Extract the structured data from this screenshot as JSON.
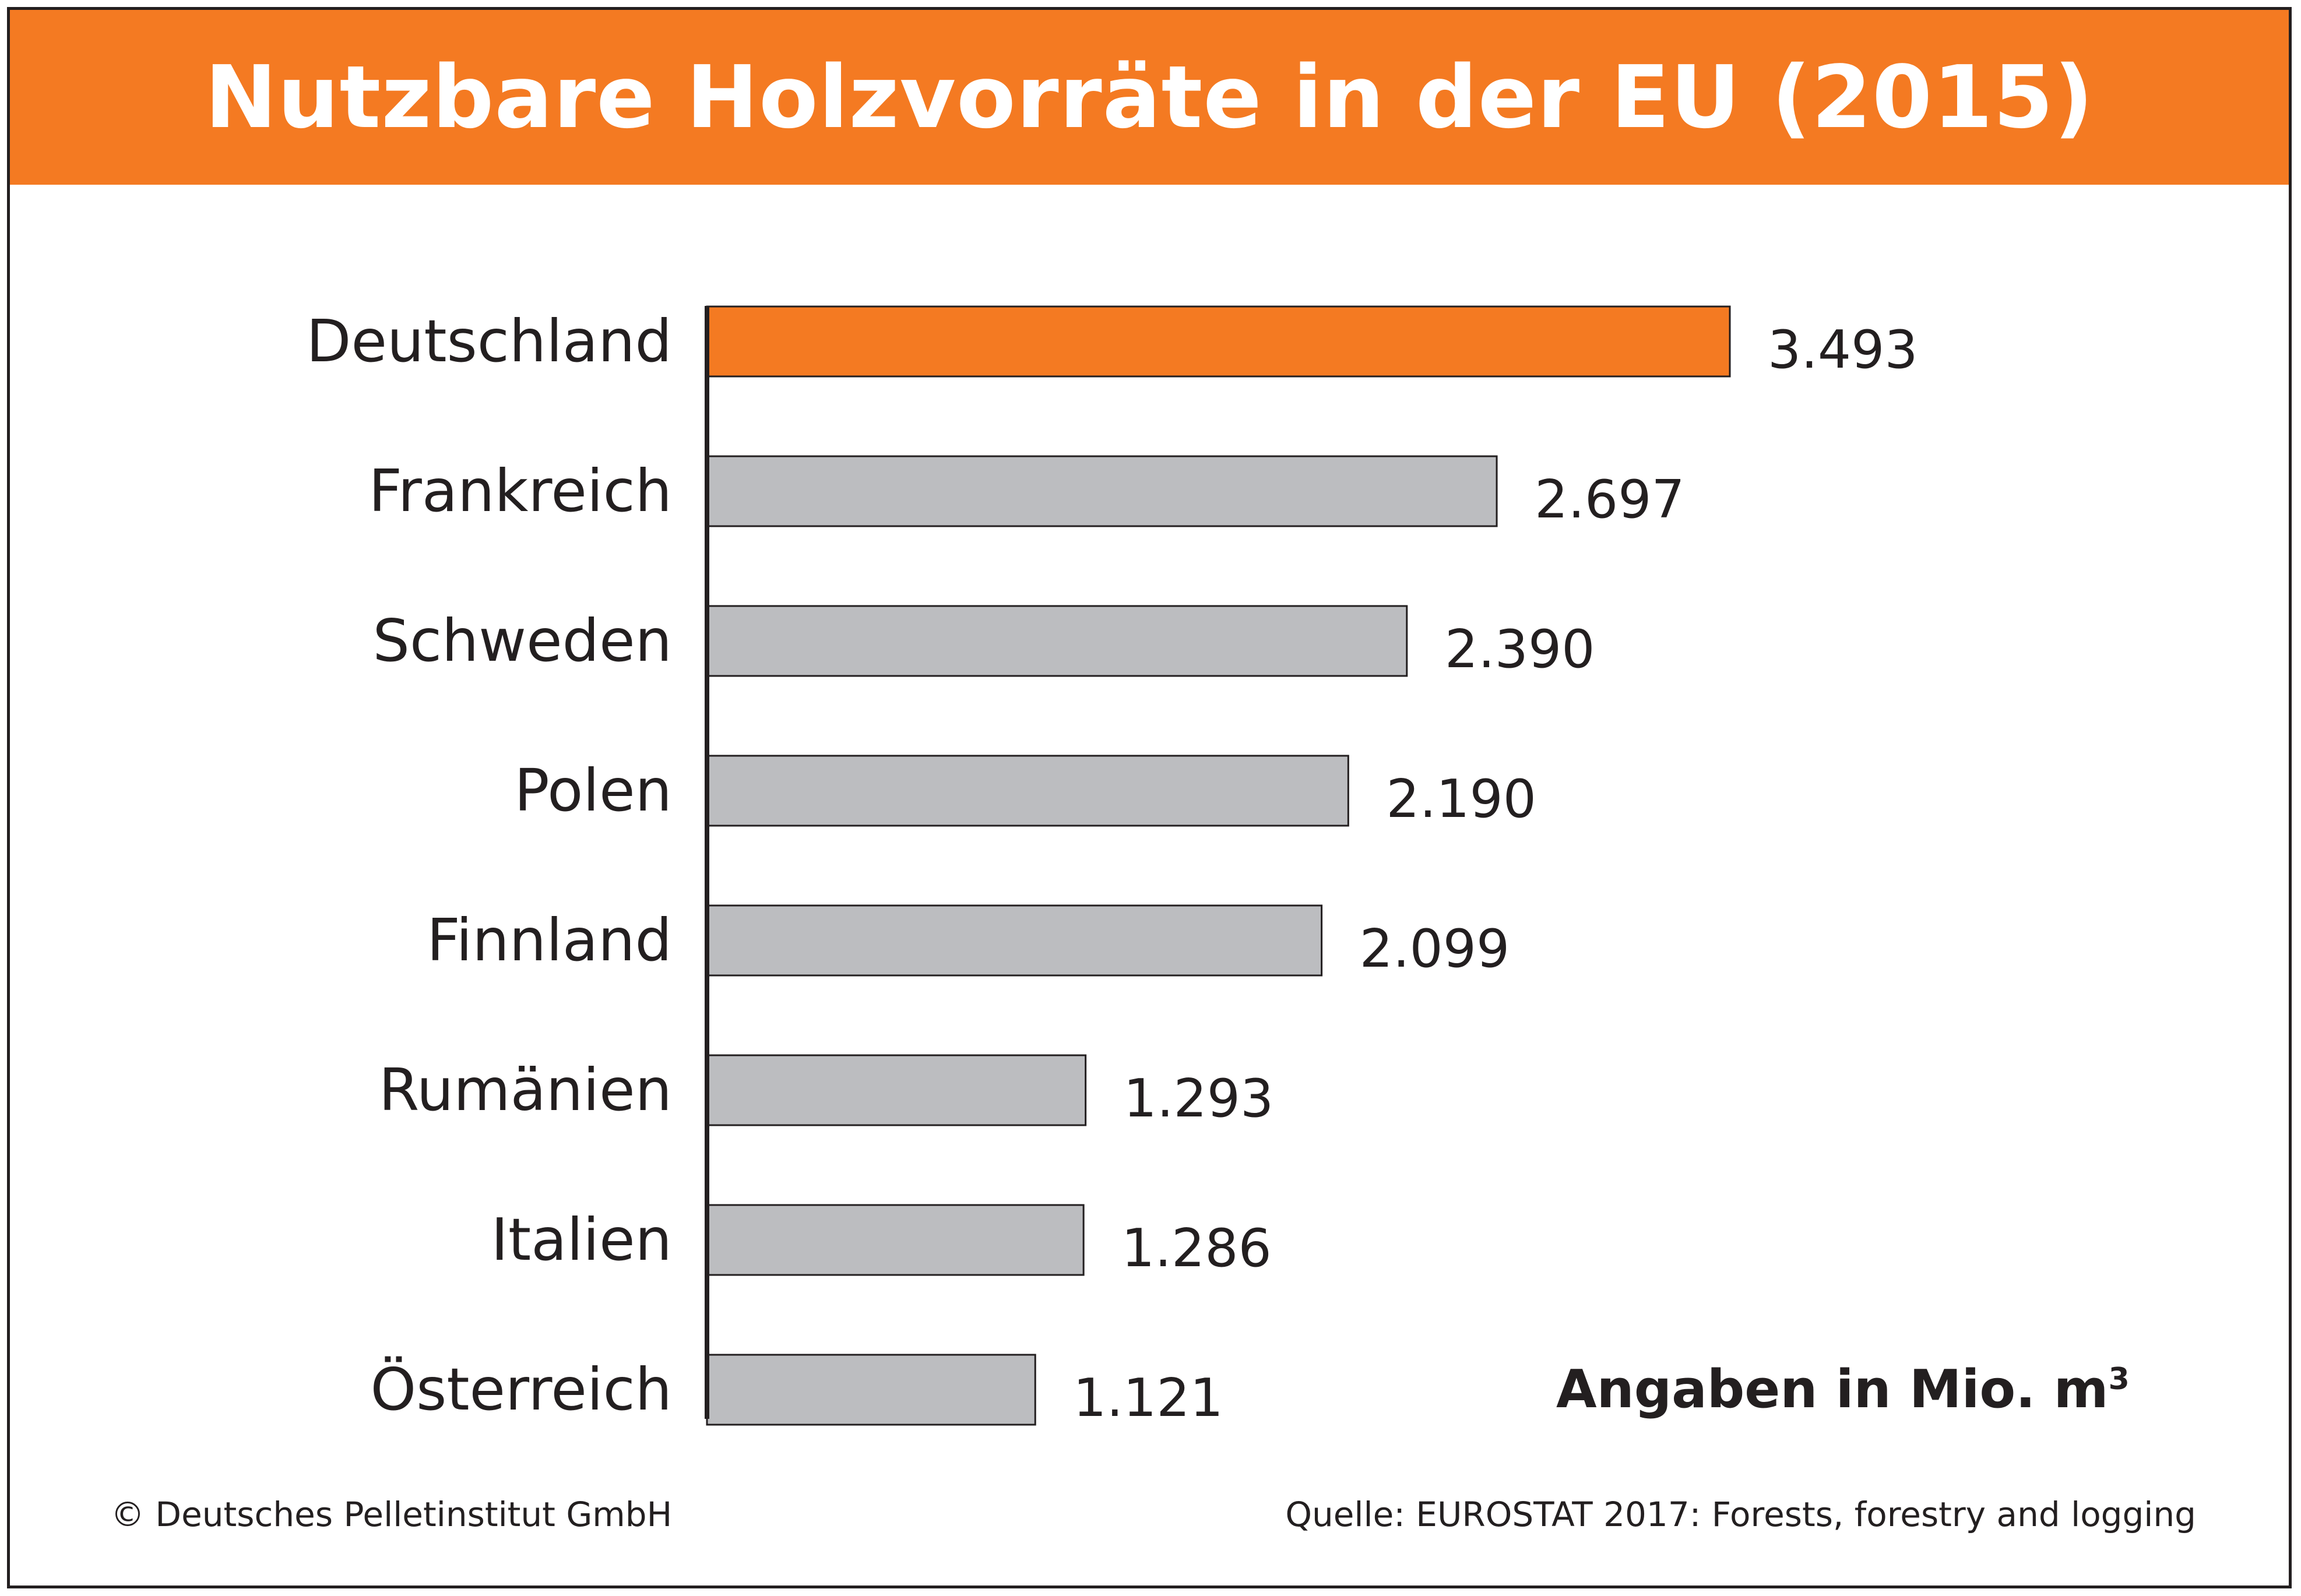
{
  "colors": {
    "accent": "#f47a22",
    "bar_default": "#bcbdc0",
    "stroke": "#231f20",
    "text": "#231f20"
  },
  "chart_data": {
    "type": "bar",
    "orientation": "horizontal",
    "title": "Nutzbare Holzvorräte in der EU (2015)",
    "categories": [
      "Deutschland",
      "Frankreich",
      "Schweden",
      "Polen",
      "Finnland",
      "Rumänien",
      "Italien",
      "Österreich"
    ],
    "values": [
      3493,
      2697,
      2390,
      2190,
      2099,
      1293,
      1286,
      1121
    ],
    "value_labels": [
      "3.493",
      "2.697",
      "2.390",
      "2.190",
      "2.099",
      "1.293",
      "1.286",
      "1.121"
    ],
    "highlight_category": "Deutschland",
    "unit_note": "Angaben in Mio. m",
    "unit_note_superscript": "3",
    "grid": false,
    "legend": "none"
  },
  "footer": {
    "copyright": "© Deutsches Pelletinstitut GmbH",
    "source": "Quelle: EUROSTAT 2017: Forests, forestry and logging"
  }
}
